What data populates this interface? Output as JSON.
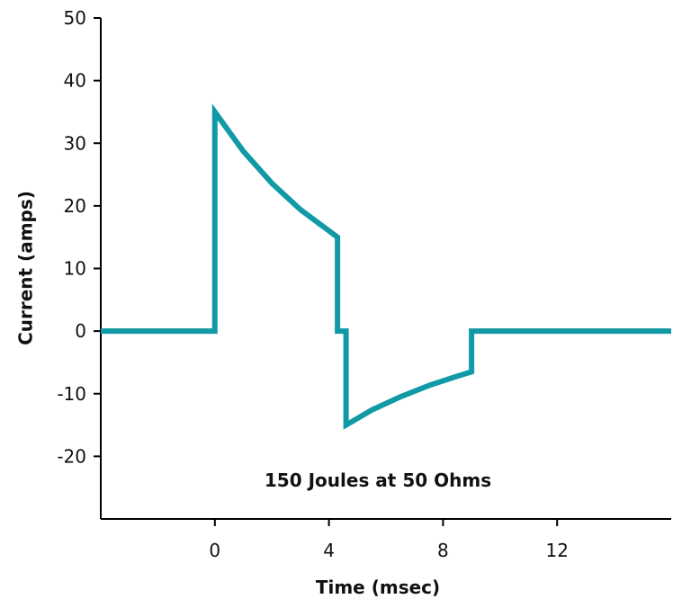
{
  "chart_data": {
    "type": "line",
    "x_label": "Time (msec)",
    "y_label": "Current (amps)",
    "annotation": "150 Joules at 50 Ohms",
    "xlim": [
      -4,
      16
    ],
    "xticks": [
      0,
      4,
      8,
      12
    ],
    "ylim": [
      -30,
      50
    ],
    "yticks": [
      -20,
      -10,
      0,
      10,
      20,
      30,
      40,
      50
    ],
    "series": [
      {
        "color": "#1199a6",
        "x": [
          -4,
          0,
          0,
          1,
          2,
          3,
          4.3,
          4.3,
          4.6,
          4.6,
          5.5,
          6.5,
          7.5,
          8.5,
          9,
          9,
          16
        ],
        "values": [
          0,
          0,
          35,
          28.7,
          23.6,
          19.4,
          15,
          0,
          0,
          -15,
          -12.6,
          -10.5,
          -8.7,
          -7.2,
          -6.5,
          0,
          0
        ]
      }
    ]
  }
}
